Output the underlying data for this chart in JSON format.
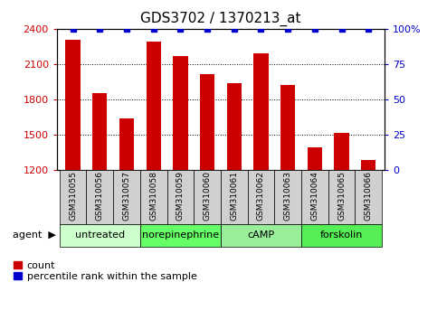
{
  "title": "GDS3702 / 1370213_at",
  "samples": [
    "GSM310055",
    "GSM310056",
    "GSM310057",
    "GSM310058",
    "GSM310059",
    "GSM310060",
    "GSM310061",
    "GSM310062",
    "GSM310063",
    "GSM310064",
    "GSM310065",
    "GSM310066"
  ],
  "counts": [
    2310,
    1855,
    1640,
    2290,
    2170,
    2010,
    1940,
    2190,
    1920,
    1390,
    1510,
    1280
  ],
  "percentiles": [
    100,
    100,
    100,
    100,
    100,
    100,
    100,
    100,
    100,
    100,
    100,
    100
  ],
  "bar_color": "#cc0000",
  "dot_color": "#0000cc",
  "ylim_left": [
    1200,
    2400
  ],
  "ylim_right": [
    0,
    100
  ],
  "yticks_left": [
    1200,
    1500,
    1800,
    2100,
    2400
  ],
  "yticks_right": [
    0,
    25,
    50,
    75,
    100
  ],
  "ytick_labels_right": [
    "0",
    "25",
    "50",
    "75",
    "100%"
  ],
  "groups": [
    {
      "label": "untreated",
      "start": 0,
      "end": 3,
      "color": "#ccffcc"
    },
    {
      "label": "norepinephrine",
      "start": 3,
      "end": 6,
      "color": "#66ff66"
    },
    {
      "label": "cAMP",
      "start": 6,
      "end": 9,
      "color": "#99ee99"
    },
    {
      "label": "forskolin",
      "start": 9,
      "end": 12,
      "color": "#55ee55"
    }
  ],
  "agent_label": "agent",
  "legend_count_label": "count",
  "legend_pct_label": "percentile rank within the sample",
  "background_color": "#ffffff",
  "plot_bg_color": "#ffffff",
  "sample_box_color": "#d0d0d0",
  "title_fontsize": 11,
  "tick_fontsize": 8,
  "sample_fontsize": 6.5,
  "group_fontsize": 8,
  "legend_fontsize": 8
}
